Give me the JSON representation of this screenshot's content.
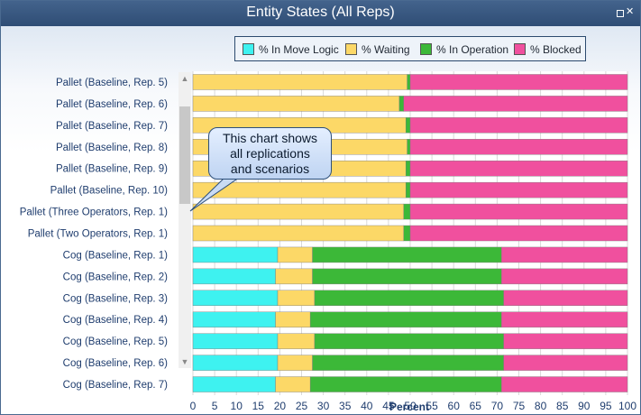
{
  "window": {
    "title": "Entity States (All Reps)",
    "restore_icon": "restore-icon",
    "close_glyph": "✕"
  },
  "legend": {
    "items": [
      {
        "label": "% In Move Logic",
        "color": "#3ef2f0"
      },
      {
        "label": "% Waiting",
        "color": "#fcd867"
      },
      {
        "label": "% In Operation",
        "color": "#3cb838"
      },
      {
        "label": "% Blocked",
        "color": "#f0509e"
      }
    ]
  },
  "callout": {
    "line1": "This chart shows",
    "line2": "all replications",
    "line3": "and scenarios"
  },
  "chart_data": {
    "type": "bar",
    "orientation": "horizontal",
    "stacked": true,
    "xlabel": "Percent",
    "xlim": [
      0,
      100
    ],
    "xticks": [
      0,
      5,
      10,
      15,
      20,
      25,
      30,
      35,
      40,
      45,
      50,
      55,
      60,
      65,
      70,
      75,
      80,
      85,
      90,
      95,
      100
    ],
    "grid": true,
    "legend_position": "top",
    "categories": [
      "Pallet (Baseline, Rep. 5)",
      "Pallet (Baseline, Rep. 6)",
      "Pallet (Baseline, Rep. 7)",
      "Pallet (Baseline, Rep. 8)",
      "Pallet (Baseline, Rep. 9)",
      "Pallet (Baseline, Rep. 10)",
      "Pallet (Three Operators, Rep. 1)",
      "Pallet (Two Operators, Rep. 1)",
      "Cog (Baseline, Rep. 1)",
      "Cog (Baseline, Rep. 2)",
      "Cog (Baseline, Rep. 3)",
      "Cog (Baseline, Rep. 4)",
      "Cog (Baseline, Rep. 5)",
      "Cog (Baseline, Rep. 6)",
      "Cog (Baseline, Rep. 7)"
    ],
    "series": [
      {
        "name": "% In Move Logic",
        "color": "#3ef2f0",
        "values": [
          0,
          0,
          0,
          0,
          0,
          0,
          0,
          0,
          19.5,
          19,
          19.5,
          19,
          19.5,
          19.5,
          19
        ]
      },
      {
        "name": "% Waiting",
        "color": "#fcd867",
        "values": [
          49.3,
          47.5,
          49,
          49.3,
          49,
          49,
          48.5,
          48.5,
          8,
          8.5,
          8.5,
          8,
          8.5,
          8,
          8
        ]
      },
      {
        "name": "% In Operation",
        "color": "#3cb838",
        "values": [
          0.7,
          1,
          1,
          0.7,
          1,
          1,
          1.5,
          1.5,
          43.5,
          43.5,
          43.5,
          44,
          43.5,
          44,
          44
        ]
      },
      {
        "name": "% Blocked",
        "color": "#f0509e",
        "values": [
          50,
          51.5,
          50,
          50,
          50,
          50,
          50,
          50,
          29,
          29,
          28.5,
          29,
          28.5,
          28.5,
          29
        ]
      }
    ]
  }
}
